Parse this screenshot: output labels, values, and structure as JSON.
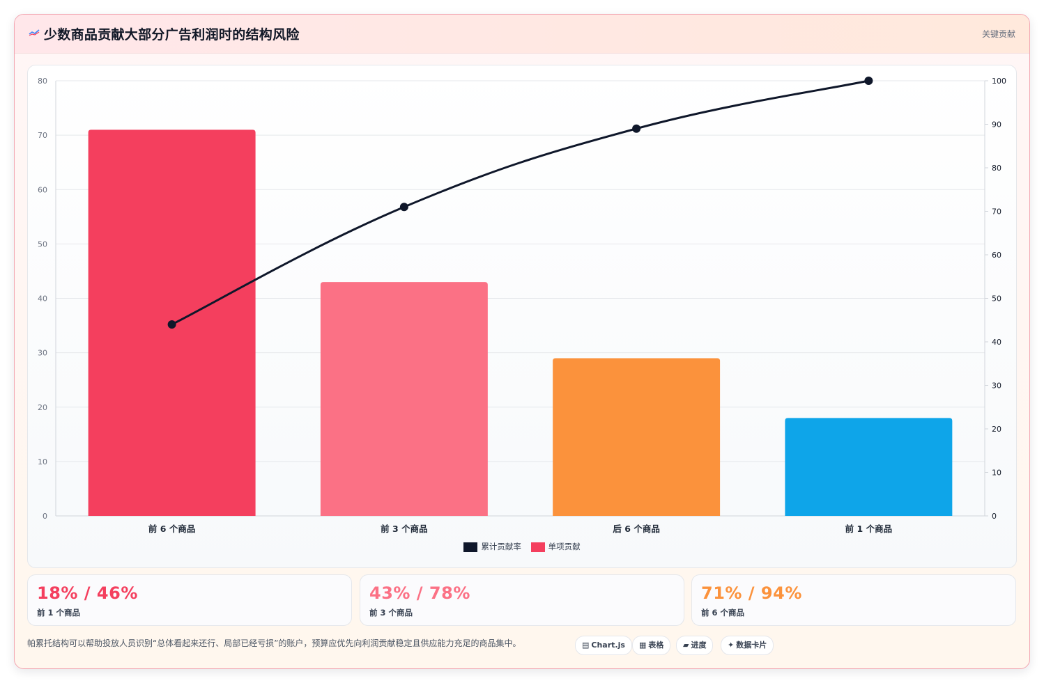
{
  "header": {
    "title": "少数商品贡献大部分广告利润时的结构风险",
    "icon": "chart-line-icon",
    "tag": "关键贡献"
  },
  "chart_data": {
    "type": "bar",
    "categories": [
      "前 6 个商品",
      "前 3 个商品",
      "后 6 个商品",
      "前 1 个商品"
    ],
    "series": [
      {
        "name": "单项贡献",
        "type": "bar",
        "axis": "left",
        "values": [
          71,
          43,
          29,
          18
        ],
        "colors": [
          "#f43f5e",
          "#fb7185",
          "#fb923c",
          "#0ea5e9"
        ]
      },
      {
        "name": "累计贡献率",
        "type": "line",
        "axis": "right",
        "values": [
          44,
          71,
          89,
          100
        ],
        "color": "#0f172a"
      }
    ],
    "left_axis": {
      "min": 0,
      "max": 80,
      "ticks": [
        0,
        10,
        20,
        30,
        40,
        50,
        60,
        70,
        80
      ]
    },
    "right_axis": {
      "min": 0,
      "max": 100,
      "ticks": [
        0,
        10,
        20,
        30,
        40,
        50,
        60,
        70,
        80,
        90,
        100
      ]
    },
    "grid": true,
    "legend_position": "bottom",
    "legend": [
      {
        "label": "累计贡献率",
        "color": "#0f172a"
      },
      {
        "label": "单项贡献",
        "color": "#f43f5e"
      }
    ]
  },
  "kpis": [
    {
      "value": "18% / 46%",
      "label": "前 1 个商品",
      "color": "#f43f5e"
    },
    {
      "value": "43% / 78%",
      "label": "前 3 个商品",
      "color": "#fb7185"
    },
    {
      "value": "71% / 94%",
      "label": "前 6 个商品",
      "color": "#fb923c"
    }
  ],
  "footnote": "帕累托结构可以帮助投放人员识别“总体看起来还行、局部已经亏损”的账户，预算应优先向利润贡献稳定且供应能力充足的商品集中。",
  "chips": [
    {
      "icon": "▤",
      "label": "Chart.js"
    },
    {
      "icon": "▦",
      "label": "表格"
    },
    {
      "icon": "▰",
      "label": "进度"
    },
    {
      "icon": "✦",
      "label": "数据卡片"
    }
  ]
}
